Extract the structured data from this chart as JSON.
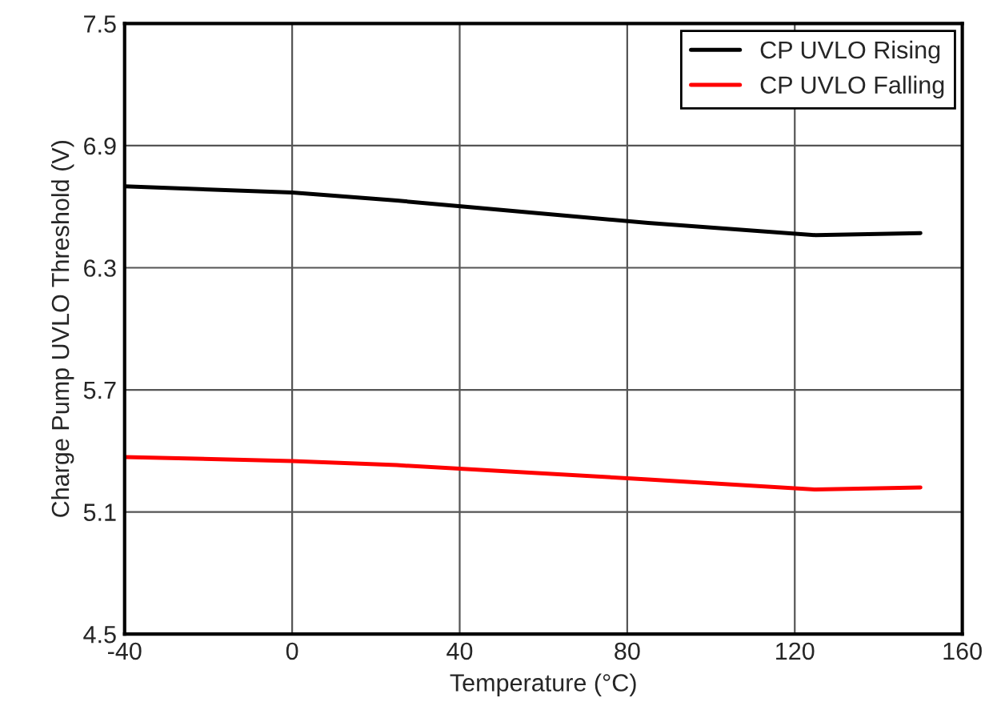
{
  "chart_data": {
    "type": "line",
    "xlabel": "Temperature (°C)",
    "ylabel": "Charge Pump UVLO Threshold (V)",
    "x": [
      -40,
      0,
      25,
      85,
      125,
      150
    ],
    "series": [
      {
        "name": "CP UVLO Rising",
        "color": "#000000",
        "values": [
          6.7,
          6.67,
          6.63,
          6.52,
          6.46,
          6.47
        ]
      },
      {
        "name": "CP UVLO Falling",
        "color": "#ff0000",
        "values": [
          5.37,
          5.35,
          5.33,
          5.26,
          5.21,
          5.22
        ]
      }
    ],
    "xlim": [
      -40,
      160
    ],
    "xticks": [
      -40,
      0,
      40,
      80,
      120,
      160
    ],
    "ylim": [
      4.5,
      7.5
    ],
    "yticks": [
      4.5,
      5.1,
      5.7,
      6.3,
      6.9,
      7.5
    ],
    "grid": true,
    "legend": "top right",
    "line_style": "solid",
    "marker": "none"
  }
}
